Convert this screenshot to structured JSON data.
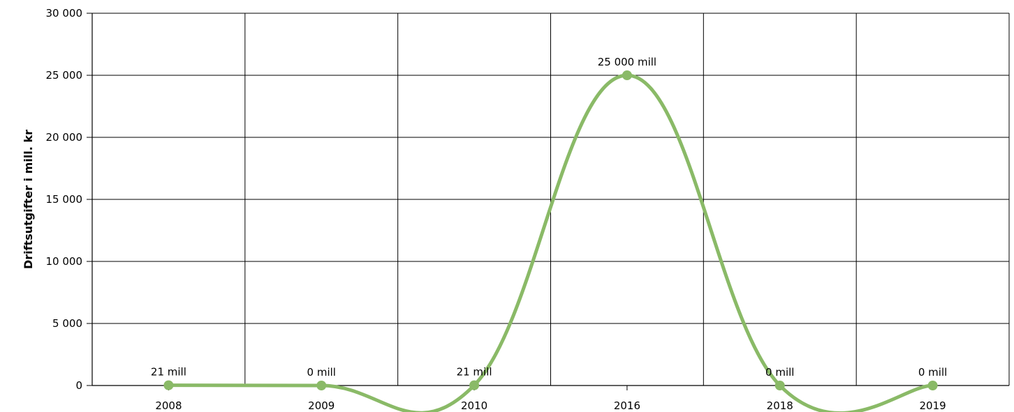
{
  "chart_data": {
    "type": "line",
    "title": "",
    "xlabel": "",
    "ylabel": "Driftsutgifter i mill. kr",
    "categories": [
      "2008",
      "2009",
      "2010",
      "2016",
      "2018",
      "2019"
    ],
    "series": [
      {
        "values": [
          21,
          0,
          21,
          25000,
          0,
          0
        ],
        "data_labels": [
          "21 mill",
          "0 mill",
          "21 mill",
          "25 000 mill",
          "0 mill",
          "0 mill"
        ],
        "color": "#8aba67"
      }
    ],
    "ylim": [
      0,
      30000
    ],
    "y_ticks": [
      0,
      5000,
      10000,
      15000,
      20000,
      25000,
      30000
    ],
    "y_tick_labels": [
      "0",
      "5 000",
      "10 000",
      "15 000",
      "20 000",
      "25 000",
      "30 000"
    ],
    "grid": true,
    "smooth": true,
    "legend": "none"
  }
}
